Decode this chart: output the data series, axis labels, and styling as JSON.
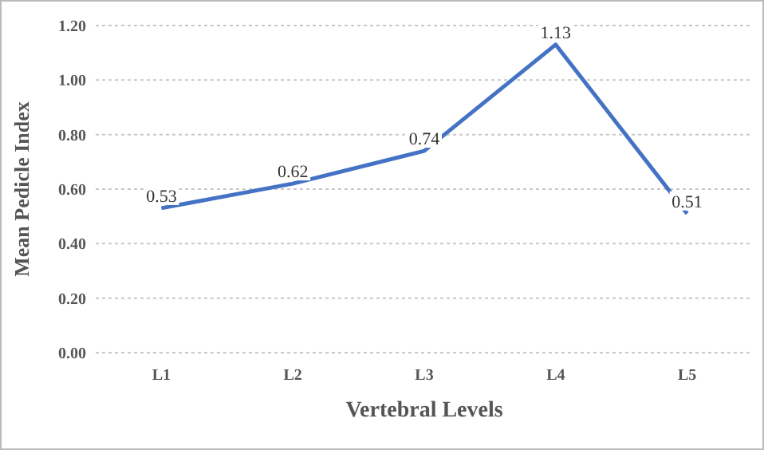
{
  "chart_data": {
    "type": "line",
    "xlabel": "Vertebral Levels",
    "ylabel": "Mean Pedicle Index",
    "categories": [
      "L1",
      "L2",
      "L3",
      "L4",
      "L5"
    ],
    "series": [
      {
        "color": "#4472c4",
        "values": [
          0.53,
          0.62,
          0.74,
          1.13,
          0.51
        ]
      }
    ],
    "ylim": [
      0,
      1.2
    ],
    "yticks": [
      {
        "value": 0,
        "label": "0.00"
      },
      {
        "value": 0.2,
        "label": "0.20"
      },
      {
        "value": 0.4,
        "label": "0.40"
      },
      {
        "value": 0.6,
        "label": "0.60"
      },
      {
        "value": 0.8,
        "label": "0.80"
      },
      {
        "value": 1,
        "label": "1.00"
      },
      {
        "value": 1.2,
        "label": "1.20"
      }
    ],
    "grid": "y",
    "data_labels": true,
    "marker": "none",
    "line_style": "solid"
  }
}
